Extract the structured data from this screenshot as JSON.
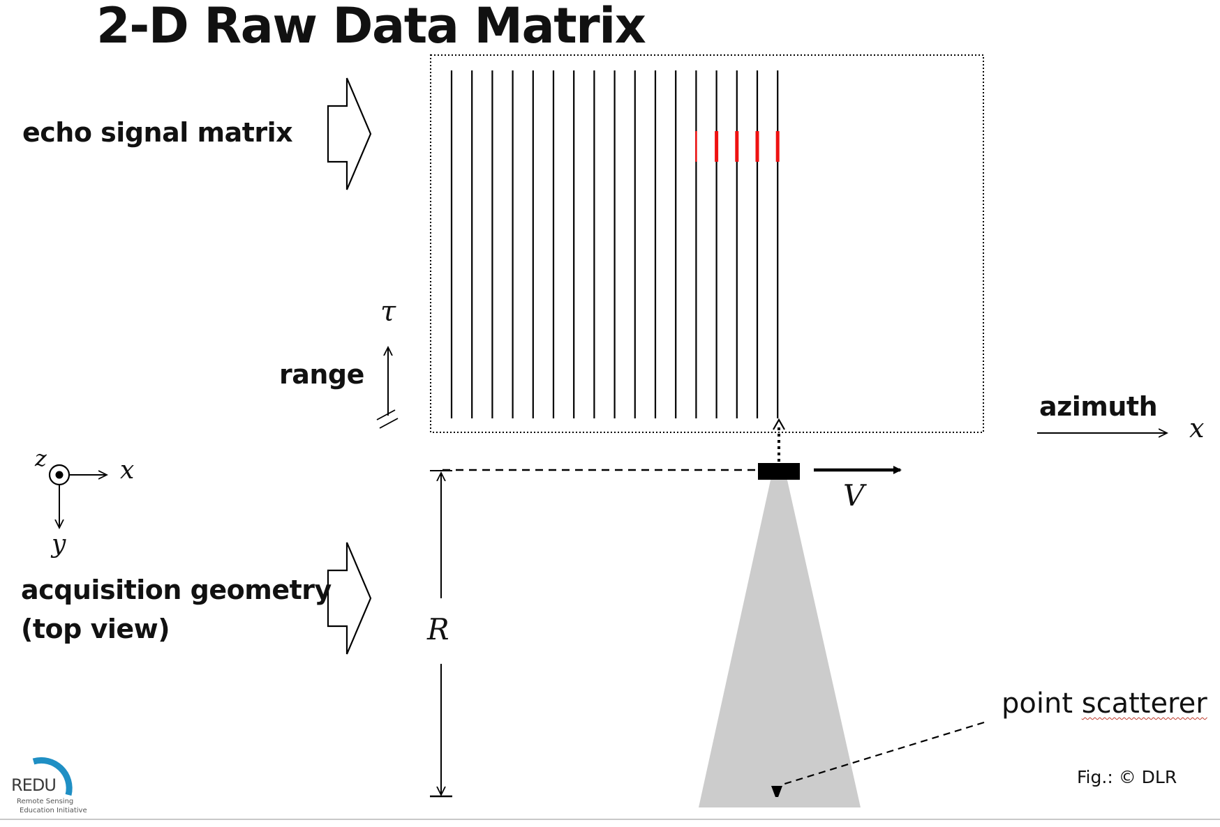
{
  "title": "2-D Raw Data Matrix",
  "labels": {
    "echo_signal_matrix": "echo signal matrix",
    "acquisition_geometry_line1": "acquisition geometry",
    "acquisition_geometry_line2": "(top view)",
    "range": "range",
    "azimuth": "azimuth",
    "point_scatterer": "point scatterer",
    "figure_credit": "Fig.: © DLR"
  },
  "symbols": {
    "tau": "τ",
    "x_azimuth": "x",
    "z_axis": "z",
    "x_axis": "x",
    "y_axis": "y",
    "velocity": "V",
    "range_distance": "R"
  },
  "logo": {
    "name": "REDU",
    "line1": "Remote Sensing",
    "line2": "Education Initiative",
    "accent_color": "#1f8fc4"
  },
  "colors": {
    "echo_line": "#000000",
    "echo_highlight": "#ee1111",
    "antenna_beam": "#cccccc",
    "matrix_border": "#000000"
  },
  "echo_matrix": {
    "line_count": 17,
    "highlighted_lines": [
      13,
      14,
      15,
      16,
      17
    ]
  }
}
